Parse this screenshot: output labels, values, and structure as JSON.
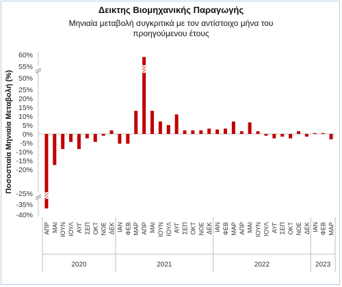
{
  "chart_data": {
    "type": "bar",
    "title": "Δεικτης Βιομηχανικής Παραγωγής",
    "subtitle": "Μηνιαία μεταβολή συγκριτικά με τον αντίστοιχο μήνα του προηγούμενου έτους",
    "ylabel": "Ποσοστιαία Μηνιαία Μεταβολή (%)",
    "xlabel": "",
    "grid": false,
    "axis_break": true,
    "y_ticks": [
      "60%",
      "55%",
      "50%",
      "25%",
      "20%",
      "15%",
      "10%",
      "5%",
      "0%",
      "-5%",
      "-10%",
      "-15%",
      "-20%",
      "-25%",
      "-35%",
      "-40%"
    ],
    "categories": [
      "ΑΠΡ",
      "ΜΑΙ",
      "ΙΟΥΝ",
      "ΙΟΥΛ",
      "ΑΥΓ",
      "ΣΕΠ",
      "ΟΚΤ",
      "ΝΟΕ",
      "ΔΕΚ",
      "ΙΑΝ",
      "ΦΕΒ",
      "ΜΑΡ",
      "ΑΠΡ",
      "ΜΑΙ",
      "ΙΟΥΝ",
      "ΙΟΥΛ",
      "ΑΥΓ",
      "ΣΕΠ",
      "ΟΚΤ",
      "ΝΟΕ",
      "ΔΕΚ",
      "ΙΑΝ",
      "ΦΕΒ",
      "ΜΑΡ",
      "ΑΠΡ",
      "ΜΑΙ",
      "ΙΟΥΝ",
      "ΙΟΥΛ",
      "ΑΥΓ",
      "ΣΕΠ",
      "ΟΚΤ",
      "ΝΟΕ",
      "ΔΕΚ",
      "ΙΑΝ",
      "ΦΕΒ",
      "ΜΑΡ"
    ],
    "years": [
      {
        "label": "2020",
        "span": 9
      },
      {
        "label": "2021",
        "span": 12
      },
      {
        "label": "2022",
        "span": 12
      },
      {
        "label": "2023",
        "span": 3
      }
    ],
    "values": [
      -37.0,
      -17.5,
      -8.5,
      -4.5,
      -8.5,
      -2.5,
      -4.5,
      -1.0,
      2.0,
      -5.5,
      -5.5,
      13.0,
      59.0,
      13.0,
      7.0,
      5.0,
      11.0,
      2.0,
      2.0,
      2.0,
      3.0,
      2.5,
      3.0,
      7.0,
      1.5,
      6.5,
      1.5,
      -1.0,
      -2.5,
      -1.5,
      -2.5,
      1.5,
      -1.5,
      0.5,
      0.5,
      -3.0
    ],
    "ylim": [
      -40,
      60
    ],
    "colors": {
      "bar": "#c00000",
      "axis": "#bfbfbf",
      "text": "#333333"
    }
  }
}
